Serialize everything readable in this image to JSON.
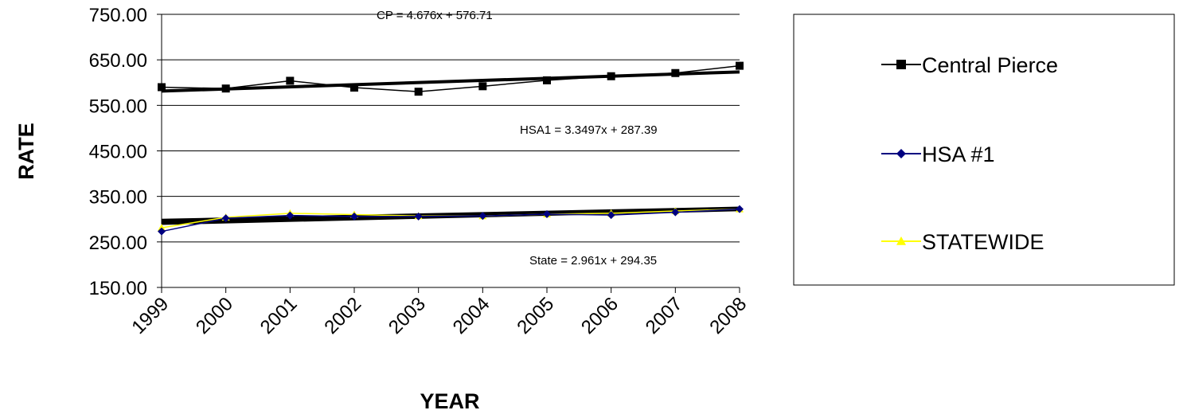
{
  "chart_data": {
    "type": "line",
    "title": "",
    "xlabel": "YEAR",
    "ylabel": "RATE",
    "categories": [
      "1999",
      "2000",
      "2001",
      "2002",
      "2003",
      "2004",
      "2005",
      "2006",
      "2007",
      "2008"
    ],
    "y_ticks": [
      "750.00",
      "650.00",
      "550.00",
      "450.00",
      "350.00",
      "250.00",
      "150.00"
    ],
    "ylim": [
      150,
      750
    ],
    "grid": true,
    "legend_position": "right",
    "series": [
      {
        "name": "Central Pierce",
        "color": "#000000",
        "marker": "square",
        "values": [
          590,
          587,
          604,
          589,
          580,
          592,
          605,
          614,
          621,
          637
        ]
      },
      {
        "name": "HSA #1",
        "color": "#000080",
        "marker": "diamond",
        "values": [
          273,
          302,
          308,
          306,
          306,
          307,
          311,
          309,
          315,
          322
        ]
      },
      {
        "name": "STATEWIDE",
        "color": "#ffff00",
        "marker": "triangle",
        "values": [
          281,
          304,
          313,
          310,
          307,
          307,
          311,
          313,
          318,
          322
        ]
      }
    ],
    "trendlines": [
      {
        "label": "CP = 4.676x + 576.71",
        "slope": 4.676,
        "intercept": 576.71
      },
      {
        "label": "HSA1 = 3.3497x + 287.39",
        "slope": 3.3497,
        "intercept": 287.39
      },
      {
        "label": "State = 2.961x + 294.35",
        "slope": 2.961,
        "intercept": 294.35
      }
    ]
  }
}
